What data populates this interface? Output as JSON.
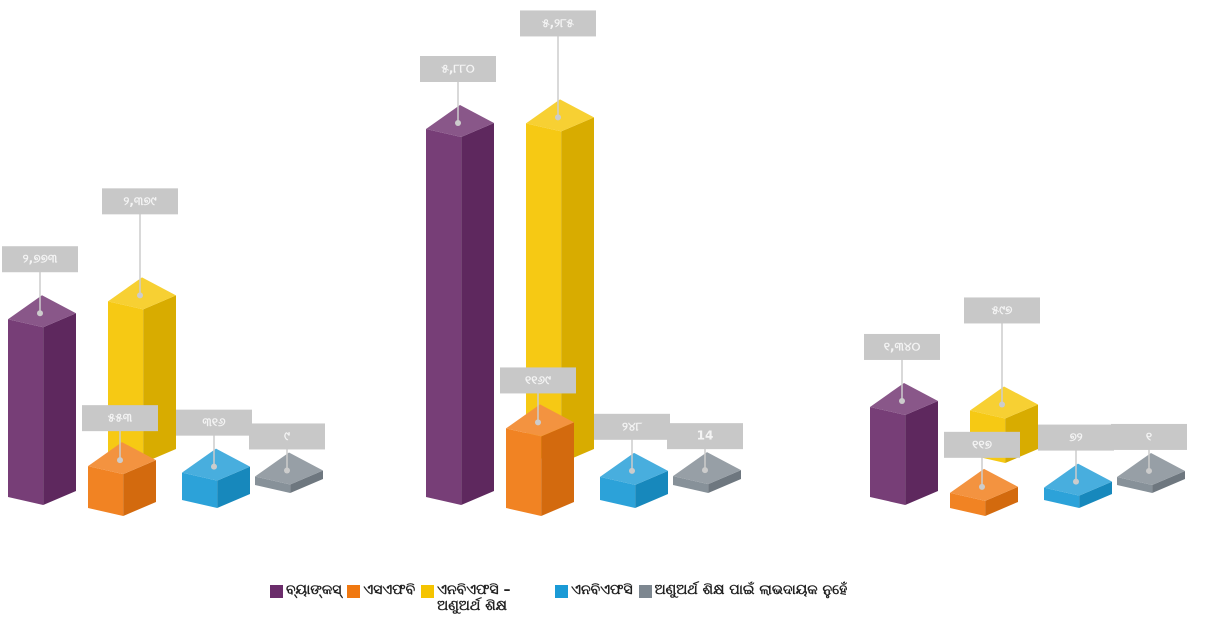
{
  "chart_data": {
    "type": "bar3d",
    "series": [
      {
        "name": "ବ୍ୟାଙ୍କସ୍",
        "color": "#6b2d6b",
        "values": [
          2773,
          5880,
          1340
        ],
        "value_labels": [
          "୨,୭୭୩",
          "୫,୮୮୦",
          "୧,୩୪୦"
        ]
      },
      {
        "name": "ଏସଏଫବି",
        "color": "#f07810",
        "values": [
          553,
          1169,
          117
        ],
        "value_labels": [
          "୫୫୩",
          "୧୧୬୯",
          "୧୧୭"
        ]
      },
      {
        "name": "ଏନବିଏଫସି – ଅଣୁଅର୍ଥ ଶିକ୍ଷ",
        "color": "#f5c400",
        "values": [
          2379,
          5285,
          597
        ],
        "value_labels": [
          "୨,୩୭୯",
          "୫,୨୮୫",
          "୫୯୭"
        ]
      },
      {
        "name": "ଏନବିଏଫସି",
        "color": "#1a9ad6",
        "values": [
          316,
          248,
          72
        ],
        "value_labels": [
          "୩୧୬",
          "୨୪୮",
          "୭୨"
        ]
      },
      {
        "name": "ଅଣୁଅର୍ଥ ଶିକ୍ଷ ପାଇଁ ଲାଭଦାୟକ ନୁହେଁ",
        "color": "#7d8790",
        "values": [
          9,
          14,
          1
        ],
        "value_labels": [
          "୯",
          "14",
          "୧"
        ]
      }
    ]
  }
}
